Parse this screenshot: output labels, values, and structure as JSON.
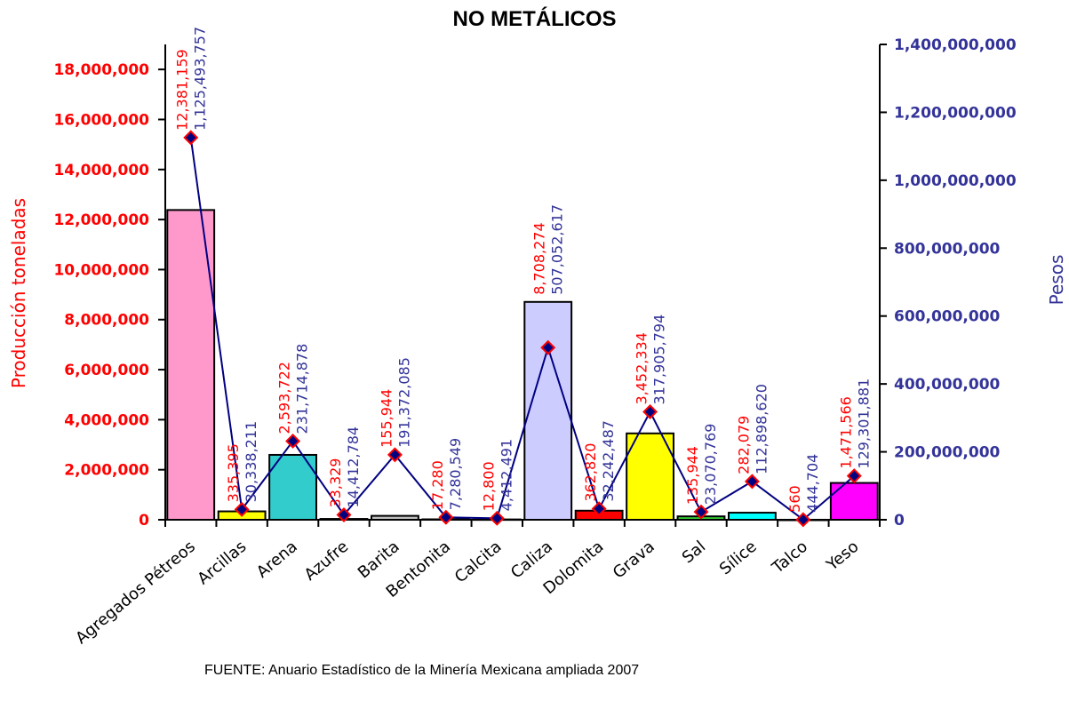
{
  "chart_data": {
    "type": "bar",
    "title": "NO METÁLICOS",
    "source": "FUENTE: Anuario Estadístico de la Minería Mexicana ampliada 2007",
    "ylabel": "Producción toneladas",
    "y2label": "Pesos",
    "ylim": [
      0,
      19000000
    ],
    "y2lim": [
      0,
      1400000000
    ],
    "yticks": [
      "0",
      "2,000,000",
      "4,000,000",
      "6,000,000",
      "8,000,000",
      "10,000,000",
      "12,000,000",
      "14,000,000",
      "16,000,000",
      "18,000,000"
    ],
    "y2ticks": [
      "0",
      "200,000,000",
      "400,000,000",
      "600,000,000",
      "800,000,000",
      "1,000,000,000",
      "1,200,000,000",
      "1,400,000,000"
    ],
    "categories": [
      "Agregados Pétreos",
      "Arcillas",
      "Arena",
      "Azufre",
      "Barita",
      "Bentonita",
      "Calcita",
      "Caliza",
      "Dolomita",
      "Grava",
      "Sal",
      "Sílice",
      "Talco",
      "Yeso"
    ],
    "series": [
      {
        "name": "Producción toneladas",
        "type": "bar",
        "values": [
          12381159,
          335395,
          2593722,
          33329,
          155944,
          17280,
          12800,
          8708274,
          362820,
          3452334,
          135944,
          282079,
          560,
          1471566
        ],
        "labels": [
          "12,381,159",
          "335,395",
          "2,593,722",
          "33,329",
          "155,944",
          "17,280",
          "12,800",
          "8,708,274",
          "362,820",
          "3,452,334",
          "135,944",
          "282,079",
          "560",
          "1,471,566"
        ]
      },
      {
        "name": "Pesos",
        "type": "line",
        "axis": "right",
        "values": [
          1125493757,
          30338211,
          231714878,
          14412784,
          191372085,
          7280549,
          4412491,
          507052617,
          32242487,
          317905794,
          23070769,
          112898620,
          444704,
          129301881
        ],
        "labels": [
          "1,125,493,757",
          "30,338,211",
          "231,714,878",
          "14,412,784",
          "191,372,085",
          "7,280,549",
          "4,412,491",
          "507,052,617",
          "32,242,487",
          "317,905,794",
          "23,070,769",
          "112,898,620",
          "444,704",
          "129,301,881"
        ]
      }
    ],
    "colors": {
      "bars": [
        "#ff99cc",
        "#ffff00",
        "#33cccc",
        "#ff6600",
        "#c0c0c0",
        "#ffffff",
        "#ffffff",
        "#ccccff",
        "#ff0000",
        "#ffff00",
        "#33cc33",
        "#00ffff",
        "#ffffff",
        "#ff00ff"
      ],
      "line": "#000080",
      "marker": "#000080",
      "marker_edge": "#ff0000",
      "left_axis_text": "#ff0000",
      "right_axis_text": "#333399"
    },
    "grid": false
  }
}
